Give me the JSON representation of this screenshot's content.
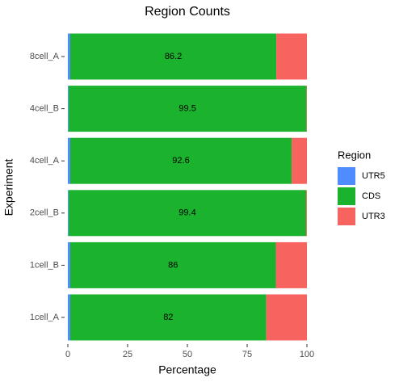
{
  "chart_data": {
    "type": "stacked_bar_horizontal",
    "title": "Region Counts",
    "xlabel": "Percentage",
    "ylabel": "Experiment",
    "legend_title": "Region",
    "legend": "right",
    "categories": [
      "1cell_A",
      "1cell_B",
      "2cell_B",
      "4cell_A",
      "4cell_B",
      "8cell_A"
    ],
    "series": [
      {
        "name": "UTR5",
        "color": "#4f8cff",
        "values": [
          1.0,
          1.0,
          0.3,
          1.0,
          0.3,
          1.0
        ]
      },
      {
        "name": "CDS",
        "color": "#1bb32e",
        "values": [
          82,
          86,
          99.4,
          92.6,
          99.5,
          86.2
        ],
        "data_labels": true
      },
      {
        "name": "UTR3",
        "color": "#f7635f",
        "values": [
          17.0,
          13.0,
          0.3,
          6.4,
          0.2,
          12.8
        ]
      }
    ],
    "xlim": [
      0,
      100
    ],
    "xticks": [
      0,
      25,
      50,
      75,
      100
    ],
    "grid": false
  }
}
